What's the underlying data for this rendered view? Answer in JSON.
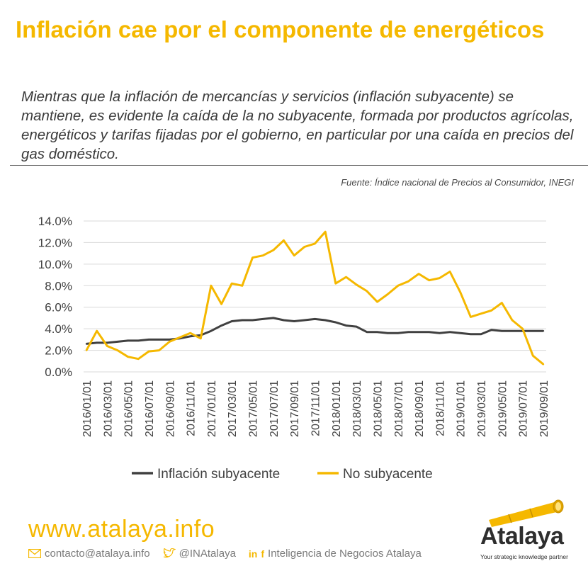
{
  "header": {
    "title": "Inflación cae por el componente de energéticos",
    "subtitle": "Mientras que la inflación de mercancías y servicios (inflación subyacente) se mantiene, es evidente la caída de la no subyacente, formada por productos agrícolas, energéticos y tarifas fijadas por el gobierno, en particular por una caída en precios del gas doméstico.",
    "source": "Fuente: Índice nacional de Precios al Consumidor, INEGI"
  },
  "colors": {
    "accent": "#f5b800",
    "series_subyacente": "#404040",
    "series_no_subyacente": "#f5b800",
    "gridline": "#d9d9d9"
  },
  "chart_data": {
    "type": "line",
    "ylim": [
      0,
      14
    ],
    "yticks": [
      "0.0%",
      "2.0%",
      "4.0%",
      "6.0%",
      "8.0%",
      "10.0%",
      "12.0%",
      "14.0%"
    ],
    "ytick_values": [
      0,
      2,
      4,
      6,
      8,
      10,
      12,
      14
    ],
    "grid": true,
    "legend_position": "bottom",
    "x": [
      "2016/01/01",
      "2016/02/01",
      "2016/03/01",
      "2016/04/01",
      "2016/05/01",
      "2016/06/01",
      "2016/07/01",
      "2016/08/01",
      "2016/09/01",
      "2016/10/01",
      "2016/11/01",
      "2016/12/01",
      "2017/01/01",
      "2017/02/01",
      "2017/03/01",
      "2017/04/01",
      "2017/05/01",
      "2017/06/01",
      "2017/07/01",
      "2017/08/01",
      "2017/09/01",
      "2017/10/01",
      "2017/11/01",
      "2017/12/01",
      "2018/01/01",
      "2018/02/01",
      "2018/03/01",
      "2018/04/01",
      "2018/05/01",
      "2018/06/01",
      "2018/07/01",
      "2018/08/01",
      "2018/09/01",
      "2018/10/01",
      "2018/11/01",
      "2018/12/01",
      "2019/01/01",
      "2019/02/01",
      "2019/03/01",
      "2019/04/01",
      "2019/05/01",
      "2019/06/01",
      "2019/07/01",
      "2019/08/01",
      "2019/09/01"
    ],
    "xticks": [
      "2016/01/01",
      "2016/03/01",
      "2016/05/01",
      "2016/07/01",
      "2016/09/01",
      "2016/11/01",
      "2017/01/01",
      "2017/03/01",
      "2017/05/01",
      "2017/07/01",
      "2017/09/01",
      "2017/11/01",
      "2018/01/01",
      "2018/03/01",
      "2018/05/01",
      "2018/07/01",
      "2018/09/01",
      "2018/11/01",
      "2019/01/01",
      "2019/03/01",
      "2019/05/01",
      "2019/07/01",
      "2019/09/01"
    ],
    "series": [
      {
        "name": "Inflación subyacente",
        "values": [
          2.6,
          2.7,
          2.7,
          2.8,
          2.9,
          2.9,
          3.0,
          3.0,
          3.0,
          3.1,
          3.3,
          3.4,
          3.8,
          4.3,
          4.7,
          4.8,
          4.8,
          4.9,
          5.0,
          4.8,
          4.7,
          4.8,
          4.9,
          4.8,
          4.6,
          4.3,
          4.2,
          3.7,
          3.7,
          3.6,
          3.6,
          3.7,
          3.7,
          3.7,
          3.6,
          3.7,
          3.6,
          3.5,
          3.5,
          3.9,
          3.8,
          3.8,
          3.8,
          3.8,
          3.8
        ]
      },
      {
        "name": "No subyacente",
        "values": [
          2.0,
          3.8,
          2.4,
          2.0,
          1.4,
          1.2,
          1.9,
          2.0,
          2.8,
          3.2,
          3.6,
          3.1,
          8.0,
          6.3,
          8.2,
          8.0,
          10.6,
          10.8,
          11.3,
          12.2,
          10.8,
          11.6,
          11.9,
          13.0,
          8.2,
          8.8,
          8.1,
          7.5,
          6.5,
          7.2,
          8.0,
          8.4,
          9.1,
          8.5,
          8.7,
          9.3,
          7.4,
          5.1,
          5.4,
          5.7,
          6.4,
          4.8,
          4.0,
          1.5,
          0.7
        ]
      }
    ]
  },
  "footer": {
    "url": "www.atalaya.info",
    "email": "contacto@atalaya.info",
    "twitter": "@INAtalaya",
    "linkedin_label": "in",
    "facebook_label": "f",
    "social_text": "Inteligencia de Negocios Atalaya",
    "logo_name": "Atalaya",
    "logo_tagline": "Your strategic knowledge partner"
  }
}
